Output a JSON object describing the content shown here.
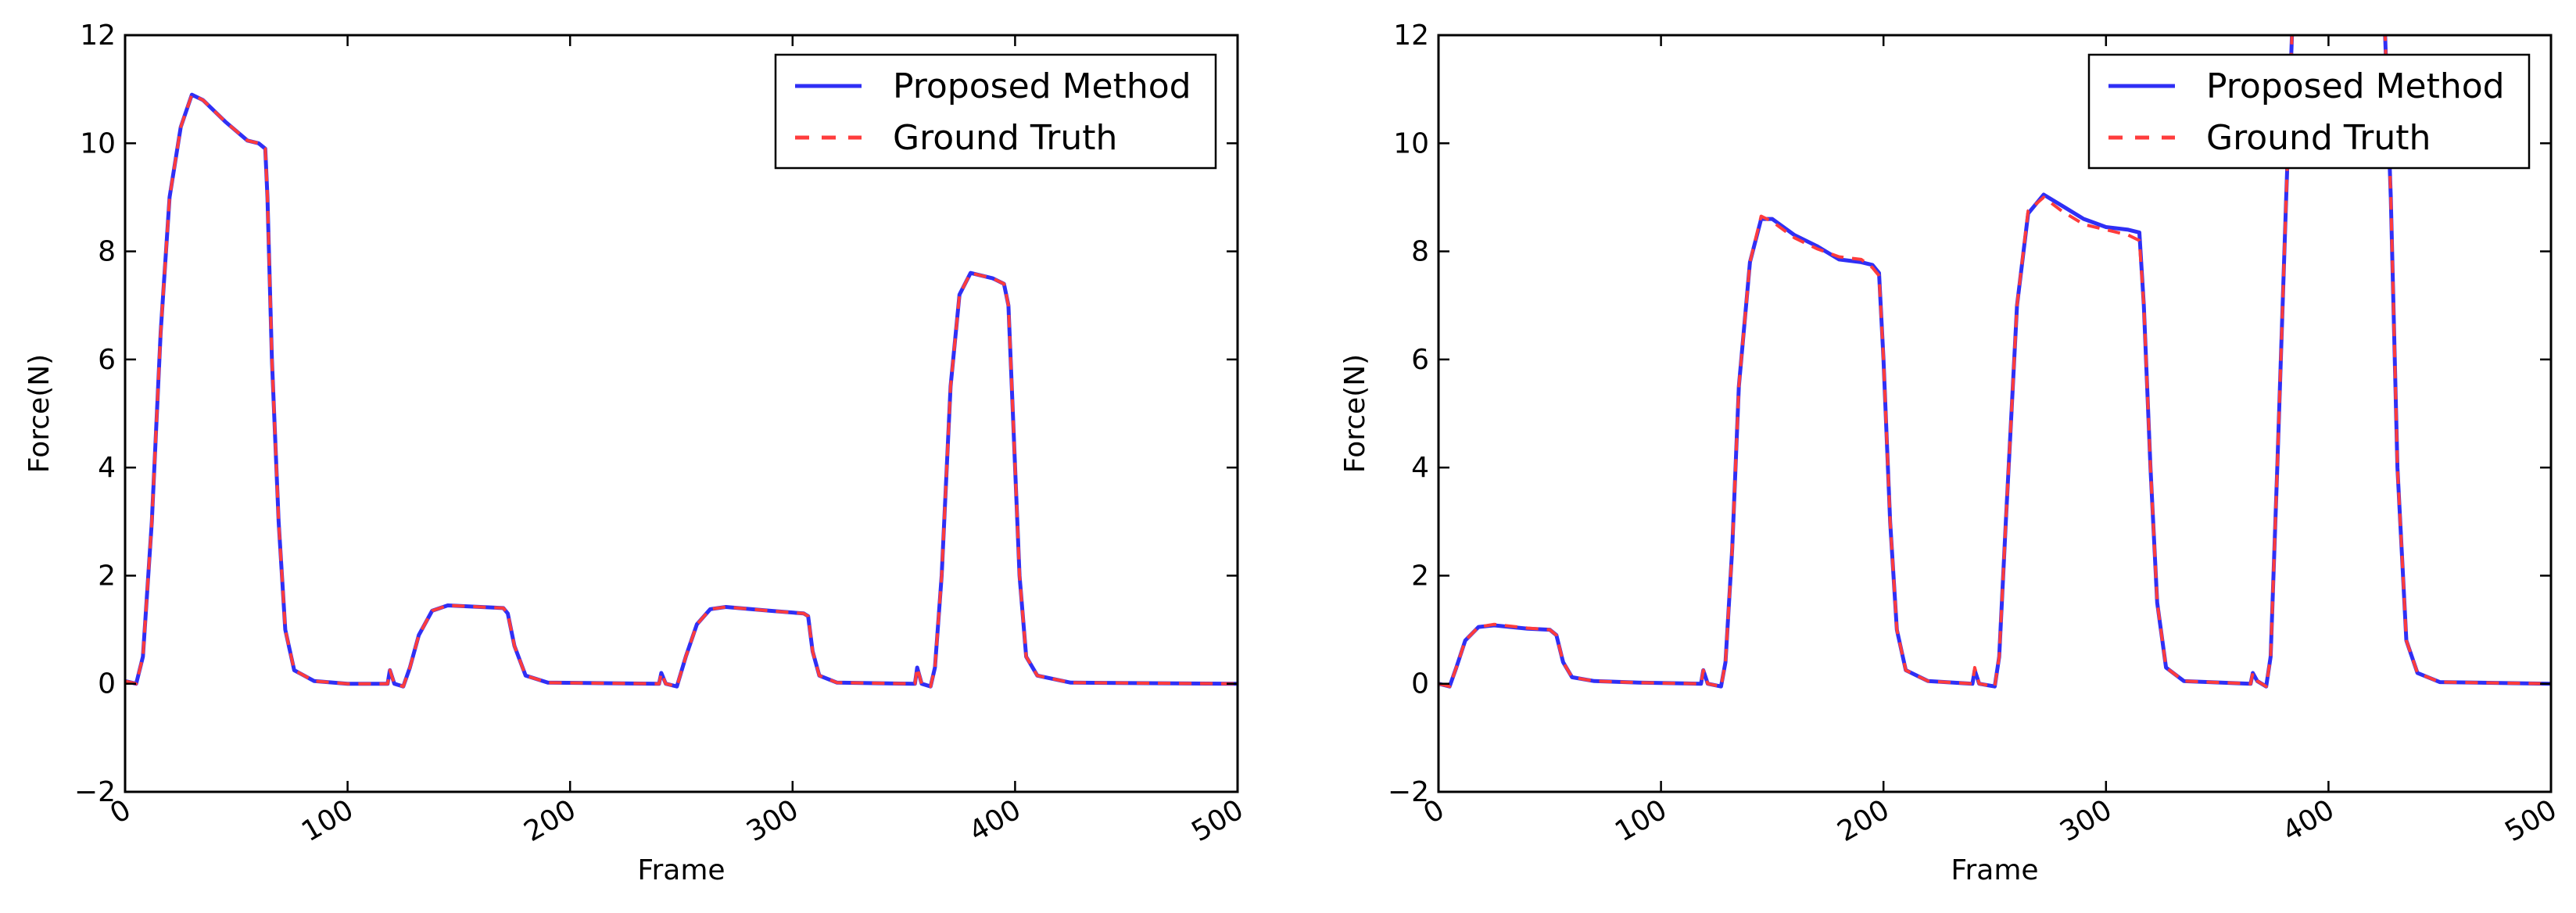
{
  "chart_data": [
    {
      "type": "line",
      "title": "",
      "xlabel": "Frame",
      "ylabel": "Force(N)",
      "xlim": [
        0,
        500
      ],
      "ylim": [
        -2,
        12
      ],
      "xticks": [
        "0",
        "100",
        "200",
        "300",
        "400",
        "500"
      ],
      "yticks": [
        "−2",
        "0",
        "2",
        "4",
        "6",
        "8",
        "10",
        "12"
      ],
      "grid": false,
      "legend_position": "top-right",
      "series": [
        {
          "name": "Proposed Method",
          "color": "#2f2ff5",
          "style": "solid",
          "points": [
            [
              0,
              0.05
            ],
            [
              5,
              0
            ],
            [
              8,
              0.5
            ],
            [
              12,
              3
            ],
            [
              16,
              6.5
            ],
            [
              20,
              9
            ],
            [
              25,
              10.3
            ],
            [
              30,
              10.9
            ],
            [
              35,
              10.8
            ],
            [
              45,
              10.4
            ],
            [
              55,
              10.05
            ],
            [
              60,
              10
            ],
            [
              63,
              9.9
            ],
            [
              64,
              9
            ],
            [
              66,
              6
            ],
            [
              69,
              3
            ],
            [
              72,
              1
            ],
            [
              76,
              0.25
            ],
            [
              85,
              0.05
            ],
            [
              100,
              0
            ],
            [
              118,
              0
            ],
            [
              119,
              0.25
            ],
            [
              121,
              0
            ],
            [
              125,
              -0.05
            ],
            [
              128,
              0.3
            ],
            [
              132,
              0.9
            ],
            [
              138,
              1.35
            ],
            [
              145,
              1.45
            ],
            [
              170,
              1.4
            ],
            [
              172,
              1.3
            ],
            [
              175,
              0.7
            ],
            [
              180,
              0.15
            ],
            [
              190,
              0.02
            ],
            [
              240,
              0
            ],
            [
              241,
              0.2
            ],
            [
              243,
              0
            ],
            [
              248,
              -0.05
            ],
            [
              252,
              0.5
            ],
            [
              257,
              1.1
            ],
            [
              263,
              1.38
            ],
            [
              270,
              1.42
            ],
            [
              290,
              1.35
            ],
            [
              305,
              1.3
            ],
            [
              307,
              1.25
            ],
            [
              309,
              0.6
            ],
            [
              312,
              0.15
            ],
            [
              320,
              0.02
            ],
            [
              355,
              0
            ],
            [
              356,
              0.3
            ],
            [
              358,
              0
            ],
            [
              362,
              -0.05
            ],
            [
              364,
              0.3
            ],
            [
              367,
              2
            ],
            [
              371,
              5.5
            ],
            [
              375,
              7.2
            ],
            [
              380,
              7.6
            ],
            [
              390,
              7.5
            ],
            [
              395,
              7.4
            ],
            [
              397,
              7
            ],
            [
              399,
              5
            ],
            [
              402,
              2
            ],
            [
              405,
              0.5
            ],
            [
              410,
              0.15
            ],
            [
              425,
              0.02
            ],
            [
              500,
              0
            ]
          ]
        },
        {
          "name": "Ground Truth",
          "color": "#ff3c3c",
          "style": "dashed",
          "points": [
            [
              0,
              0.05
            ],
            [
              5,
              0
            ],
            [
              8,
              0.5
            ],
            [
              12,
              3
            ],
            [
              16,
              6.5
            ],
            [
              20,
              9
            ],
            [
              25,
              10.3
            ],
            [
              30,
              10.9
            ],
            [
              35,
              10.8
            ],
            [
              45,
              10.4
            ],
            [
              55,
              10.05
            ],
            [
              60,
              10
            ],
            [
              63,
              9.9
            ],
            [
              64,
              9
            ],
            [
              66,
              6
            ],
            [
              69,
              3
            ],
            [
              72,
              1
            ],
            [
              76,
              0.25
            ],
            [
              85,
              0.05
            ],
            [
              100,
              0
            ],
            [
              118,
              0
            ],
            [
              119,
              0.25
            ],
            [
              121,
              0
            ],
            [
              125,
              -0.05
            ],
            [
              128,
              0.3
            ],
            [
              132,
              0.9
            ],
            [
              138,
              1.35
            ],
            [
              145,
              1.45
            ],
            [
              170,
              1.4
            ],
            [
              172,
              1.3
            ],
            [
              175,
              0.7
            ],
            [
              180,
              0.15
            ],
            [
              190,
              0.02
            ],
            [
              240,
              0
            ],
            [
              241,
              0.2
            ],
            [
              243,
              0
            ],
            [
              248,
              -0.05
            ],
            [
              252,
              0.5
            ],
            [
              257,
              1.1
            ],
            [
              263,
              1.38
            ],
            [
              270,
              1.42
            ],
            [
              290,
              1.35
            ],
            [
              305,
              1.3
            ],
            [
              307,
              1.25
            ],
            [
              309,
              0.6
            ],
            [
              312,
              0.15
            ],
            [
              320,
              0.02
            ],
            [
              355,
              0
            ],
            [
              356,
              0.3
            ],
            [
              358,
              0
            ],
            [
              362,
              -0.05
            ],
            [
              364,
              0.3
            ],
            [
              367,
              2
            ],
            [
              371,
              5.5
            ],
            [
              375,
              7.2
            ],
            [
              380,
              7.6
            ],
            [
              390,
              7.5
            ],
            [
              395,
              7.4
            ],
            [
              397,
              7
            ],
            [
              399,
              5
            ],
            [
              402,
              2
            ],
            [
              405,
              0.5
            ],
            [
              410,
              0.15
            ],
            [
              425,
              0.02
            ],
            [
              500,
              0
            ]
          ]
        }
      ]
    },
    {
      "type": "line",
      "title": "",
      "xlabel": "Frame",
      "ylabel": "Force(N)",
      "xlim": [
        0,
        500
      ],
      "ylim": [
        -2,
        12
      ],
      "xticks": [
        "0",
        "100",
        "200",
        "300",
        "400",
        "500"
      ],
      "yticks": [
        "−2",
        "0",
        "2",
        "4",
        "6",
        "8",
        "10",
        "12"
      ],
      "grid": false,
      "legend_position": "top-right",
      "series": [
        {
          "name": "Proposed Method",
          "color": "#2f2ff5",
          "style": "solid",
          "points": [
            [
              0,
              0
            ],
            [
              5,
              -0.05
            ],
            [
              8,
              0.3
            ],
            [
              12,
              0.8
            ],
            [
              18,
              1.05
            ],
            [
              25,
              1.08
            ],
            [
              40,
              1.02
            ],
            [
              50,
              1
            ],
            [
              53,
              0.9
            ],
            [
              56,
              0.4
            ],
            [
              60,
              0.12
            ],
            [
              70,
              0.05
            ],
            [
              90,
              0.02
            ],
            [
              118,
              0
            ],
            [
              119,
              0.25
            ],
            [
              121,
              0
            ],
            [
              127,
              -0.05
            ],
            [
              129,
              0.4
            ],
            [
              132,
              2.5
            ],
            [
              135,
              5.5
            ],
            [
              140,
              7.8
            ],
            [
              145,
              8.6
            ],
            [
              150,
              8.6
            ],
            [
              160,
              8.3
            ],
            [
              170,
              8.1
            ],
            [
              180,
              7.85
            ],
            [
              190,
              7.8
            ],
            [
              195,
              7.75
            ],
            [
              198,
              7.6
            ],
            [
              200,
              6
            ],
            [
              203,
              3
            ],
            [
              206,
              1
            ],
            [
              210,
              0.25
            ],
            [
              220,
              0.05
            ],
            [
              240,
              0
            ],
            [
              241,
              0.25
            ],
            [
              243,
              0
            ],
            [
              250,
              -0.05
            ],
            [
              252,
              0.5
            ],
            [
              255,
              3
            ],
            [
              260,
              7
            ],
            [
              265,
              8.7
            ],
            [
              272,
              9.05
            ],
            [
              280,
              8.85
            ],
            [
              290,
              8.6
            ],
            [
              300,
              8.45
            ],
            [
              310,
              8.4
            ],
            [
              315,
              8.35
            ],
            [
              317,
              7
            ],
            [
              320,
              4
            ],
            [
              323,
              1.5
            ],
            [
              327,
              0.3
            ],
            [
              335,
              0.05
            ],
            [
              365,
              0
            ],
            [
              366,
              0.2
            ],
            [
              368,
              0.05
            ],
            [
              372,
              -0.05
            ],
            [
              374,
              0.5
            ],
            [
              377,
              4
            ],
            [
              381,
              9
            ],
            [
              384,
              12.5
            ],
            [
              425,
              12.5
            ],
            [
              428,
              9
            ],
            [
              431,
              4
            ],
            [
              435,
              0.8
            ],
            [
              440,
              0.2
            ],
            [
              450,
              0.03
            ],
            [
              500,
              0
            ]
          ]
        },
        {
          "name": "Ground Truth",
          "color": "#ff3c3c",
          "style": "dashed",
          "points": [
            [
              0,
              0
            ],
            [
              5,
              -0.05
            ],
            [
              8,
              0.3
            ],
            [
              12,
              0.8
            ],
            [
              18,
              1.05
            ],
            [
              25,
              1.1
            ],
            [
              40,
              1.03
            ],
            [
              50,
              1
            ],
            [
              53,
              0.9
            ],
            [
              56,
              0.4
            ],
            [
              60,
              0.12
            ],
            [
              70,
              0.05
            ],
            [
              90,
              0.02
            ],
            [
              118,
              0
            ],
            [
              119,
              0.25
            ],
            [
              121,
              0
            ],
            [
              127,
              -0.05
            ],
            [
              129,
              0.4
            ],
            [
              132,
              2.5
            ],
            [
              135,
              5.5
            ],
            [
              140,
              7.8
            ],
            [
              145,
              8.65
            ],
            [
              150,
              8.55
            ],
            [
              160,
              8.25
            ],
            [
              170,
              8.05
            ],
            [
              180,
              7.9
            ],
            [
              190,
              7.85
            ],
            [
              195,
              7.7
            ],
            [
              198,
              7.55
            ],
            [
              200,
              6
            ],
            [
              203,
              3
            ],
            [
              206,
              1
            ],
            [
              210,
              0.25
            ],
            [
              220,
              0.05
            ],
            [
              240,
              0
            ],
            [
              241,
              0.3
            ],
            [
              243,
              0
            ],
            [
              250,
              -0.05
            ],
            [
              252,
              0.5
            ],
            [
              255,
              3
            ],
            [
              260,
              7
            ],
            [
              265,
              8.75
            ],
            [
              272,
              9
            ],
            [
              280,
              8.75
            ],
            [
              290,
              8.5
            ],
            [
              300,
              8.4
            ],
            [
              310,
              8.3
            ],
            [
              315,
              8.2
            ],
            [
              317,
              7
            ],
            [
              320,
              4
            ],
            [
              323,
              1.5
            ],
            [
              327,
              0.3
            ],
            [
              335,
              0.05
            ],
            [
              365,
              0
            ],
            [
              366,
              0.2
            ],
            [
              368,
              0.05
            ],
            [
              372,
              -0.05
            ],
            [
              374,
              0.5
            ],
            [
              377,
              4
            ],
            [
              381,
              9
            ],
            [
              384,
              12.5
            ],
            [
              425,
              12.5
            ],
            [
              428,
              9
            ],
            [
              431,
              4
            ],
            [
              435,
              0.8
            ],
            [
              440,
              0.2
            ],
            [
              450,
              0.03
            ],
            [
              500,
              0
            ]
          ]
        }
      ]
    }
  ]
}
